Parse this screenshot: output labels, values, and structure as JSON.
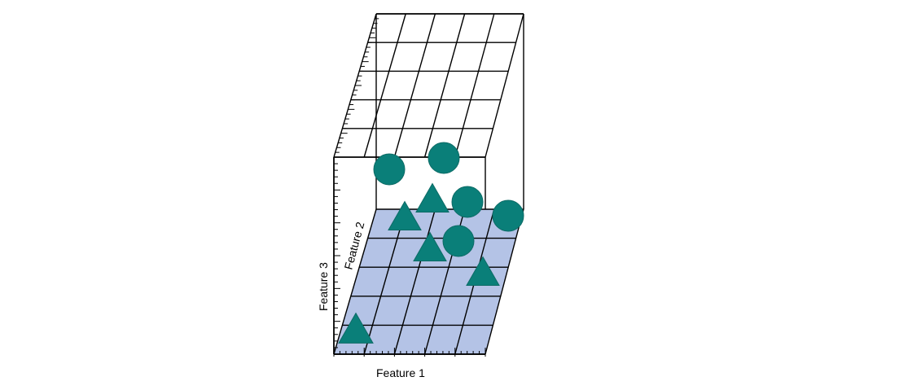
{
  "labels": {
    "feature1": "Feature 1",
    "feature2": "Feature 2",
    "feature3": "Feature 3"
  },
  "colors": {
    "marker": "#0a7f79",
    "plane_fill": "#b4c3e6",
    "line": "#000000"
  },
  "markers": [
    {
      "shape": "circle"
    },
    {
      "shape": "circle"
    },
    {
      "shape": "circle"
    },
    {
      "shape": "circle"
    },
    {
      "shape": "circle"
    },
    {
      "shape": "triangle"
    },
    {
      "shape": "triangle"
    },
    {
      "shape": "triangle"
    },
    {
      "shape": "triangle"
    },
    {
      "shape": "triangle"
    }
  ]
}
